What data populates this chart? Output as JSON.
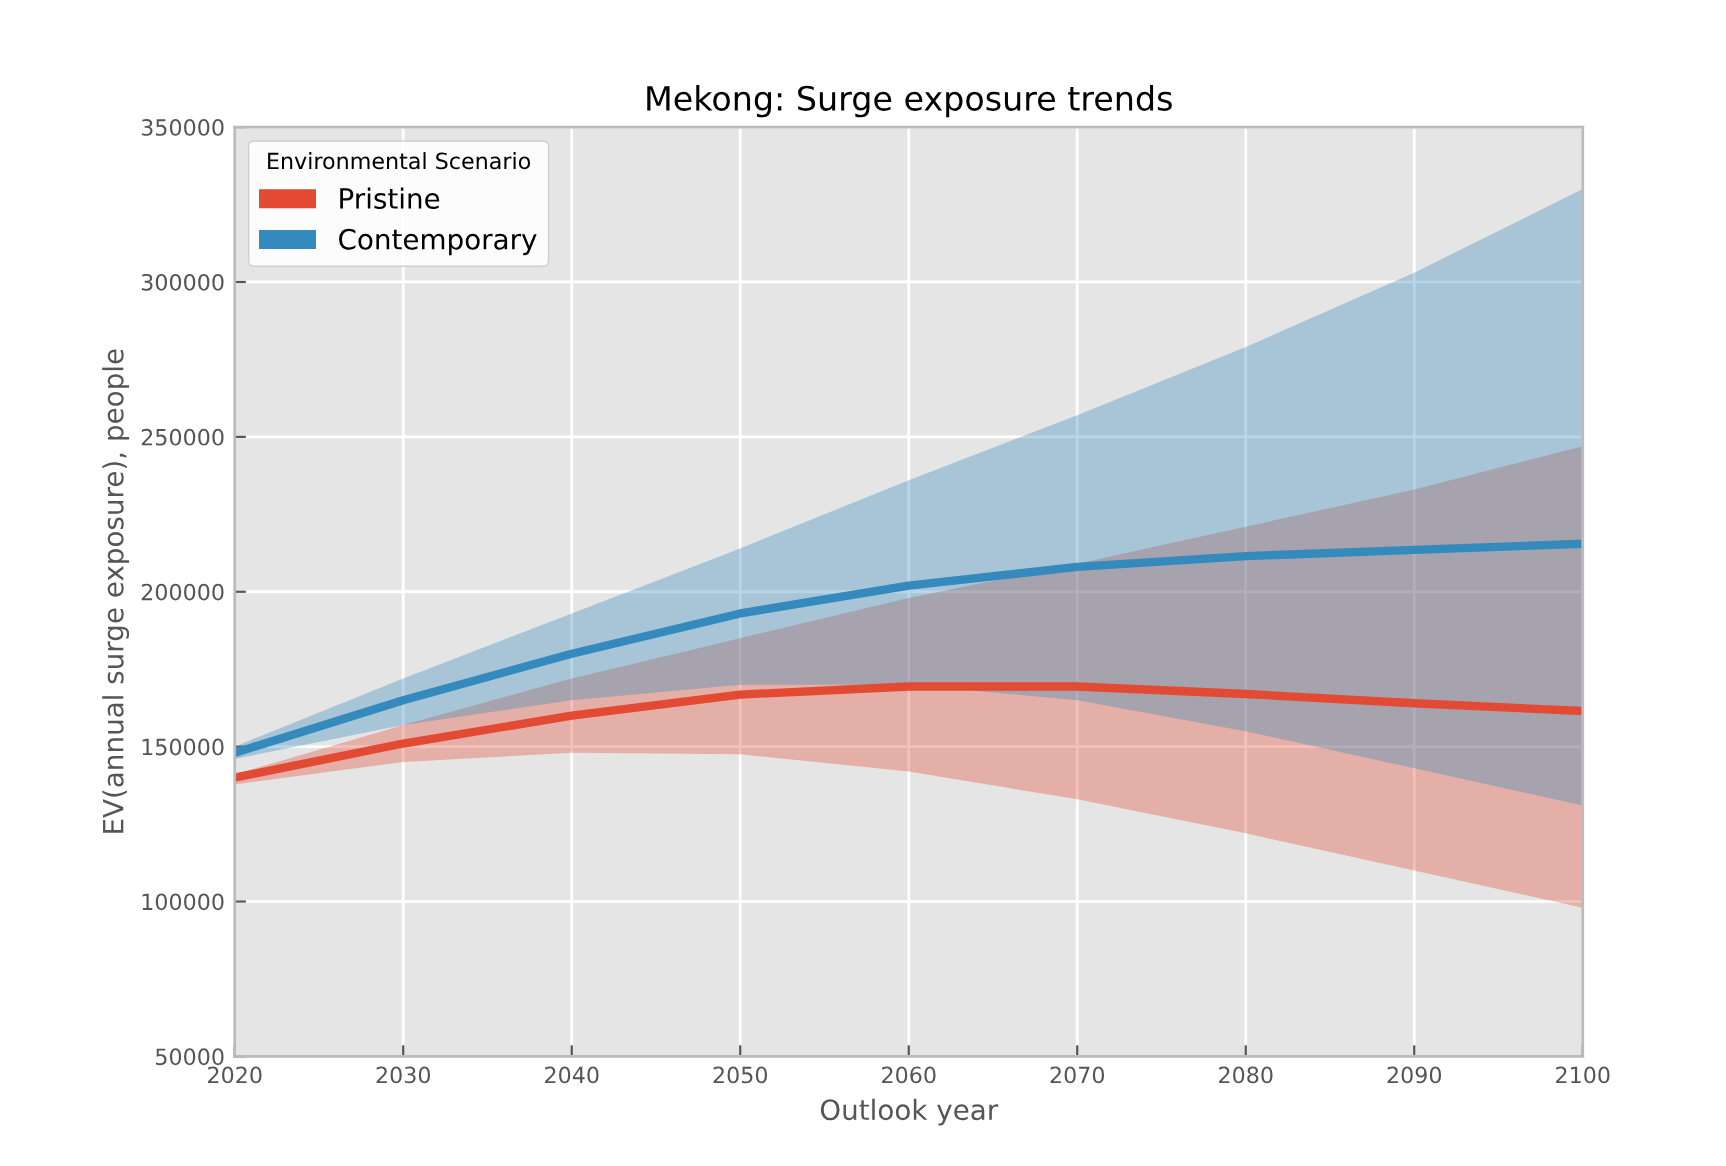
{
  "chart_data": {
    "type": "line",
    "title": "Mekong: Surge exposure trends",
    "xlabel": "Outlook year",
    "ylabel": "EV(annual surge exposure), people",
    "legend_title": "Environmental Scenario",
    "x": [
      2020,
      2030,
      2040,
      2050,
      2060,
      2070,
      2080,
      2090,
      2100
    ],
    "series": [
      {
        "name": "Pristine",
        "color": "#e24a33",
        "values": [
          140000,
          151000,
          160000,
          166800,
          169400,
          169400,
          167000,
          164000,
          161500
        ],
        "lower": [
          137800,
          145000,
          148000,
          147500,
          142000,
          133000,
          122000,
          110000,
          98000
        ],
        "upper": [
          141000,
          157000,
          172000,
          185000,
          198000,
          209000,
          221000,
          233000,
          247000
        ]
      },
      {
        "name": "Contemporary",
        "color": "#348abd",
        "values": [
          148000,
          165000,
          180000,
          193000,
          202000,
          208000,
          211500,
          213500,
          215500
        ],
        "lower": [
          146000,
          157000,
          165000,
          170000,
          170000,
          165000,
          155000,
          143000,
          131000
        ],
        "upper": [
          150000,
          172000,
          193000,
          214000,
          236000,
          257000,
          279000,
          303000,
          330000
        ]
      }
    ],
    "xlim": [
      2020,
      2100
    ],
    "xticks": [
      2020,
      2030,
      2040,
      2050,
      2060,
      2070,
      2080,
      2090,
      2100
    ],
    "ylim": [
      50000,
      350000
    ],
    "yticks": [
      50000,
      100000,
      150000,
      200000,
      250000,
      300000,
      350000
    ],
    "grid": true,
    "legend": "top left",
    "line_style": "solid",
    "marker": "none"
  }
}
